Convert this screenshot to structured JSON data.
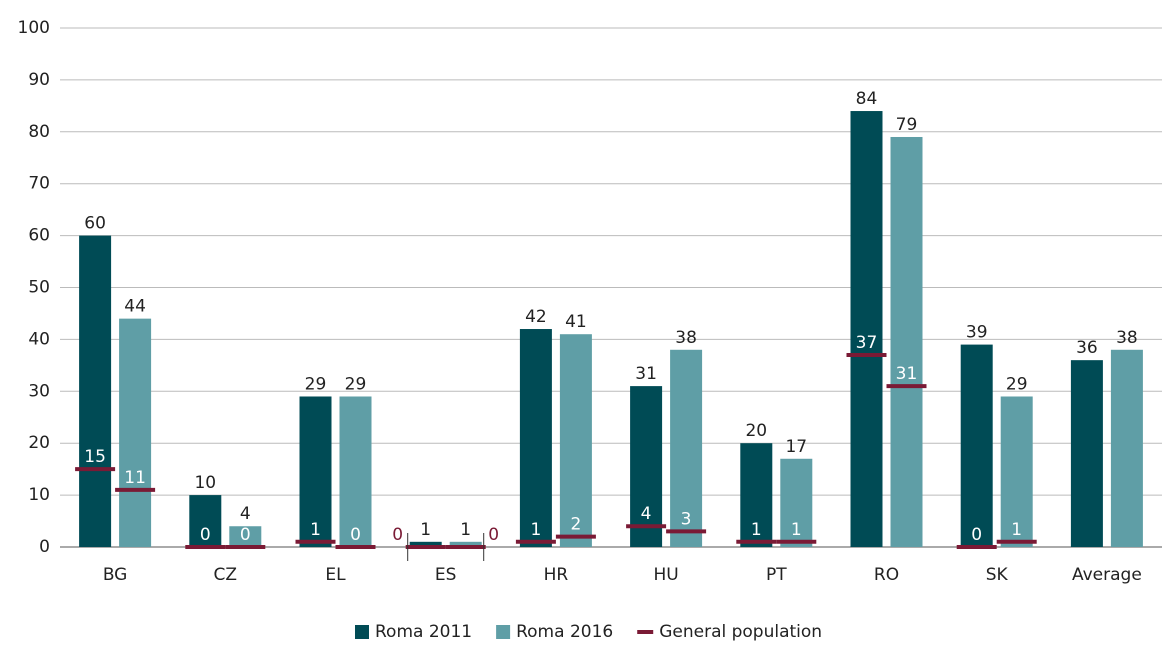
{
  "chart_data": {
    "type": "bar",
    "categories": [
      "BG",
      "CZ",
      "EL",
      "ES",
      "HR",
      "HU",
      "PT",
      "RO",
      "SK",
      "Average"
    ],
    "series": [
      {
        "name": "Roma 2011",
        "color": "#004b55",
        "values": [
          60,
          10,
          29,
          1,
          42,
          31,
          20,
          84,
          39,
          36
        ],
        "general_population": [
          15,
          0,
          1,
          0,
          1,
          4,
          1,
          37,
          0,
          null
        ]
      },
      {
        "name": "Roma 2016",
        "color": "#5f9ea6",
        "values": [
          44,
          4,
          29,
          1,
          41,
          38,
          17,
          79,
          29,
          38
        ],
        "general_population": [
          11,
          0,
          0,
          0,
          2,
          3,
          1,
          31,
          1,
          null
        ]
      }
    ],
    "marker": {
      "name": "General population",
      "color": "#7a1a35"
    },
    "ylim": [
      0,
      100
    ],
    "yticks": [
      0,
      10,
      20,
      30,
      40,
      50,
      60,
      70,
      80,
      90,
      100
    ],
    "grid": true
  }
}
